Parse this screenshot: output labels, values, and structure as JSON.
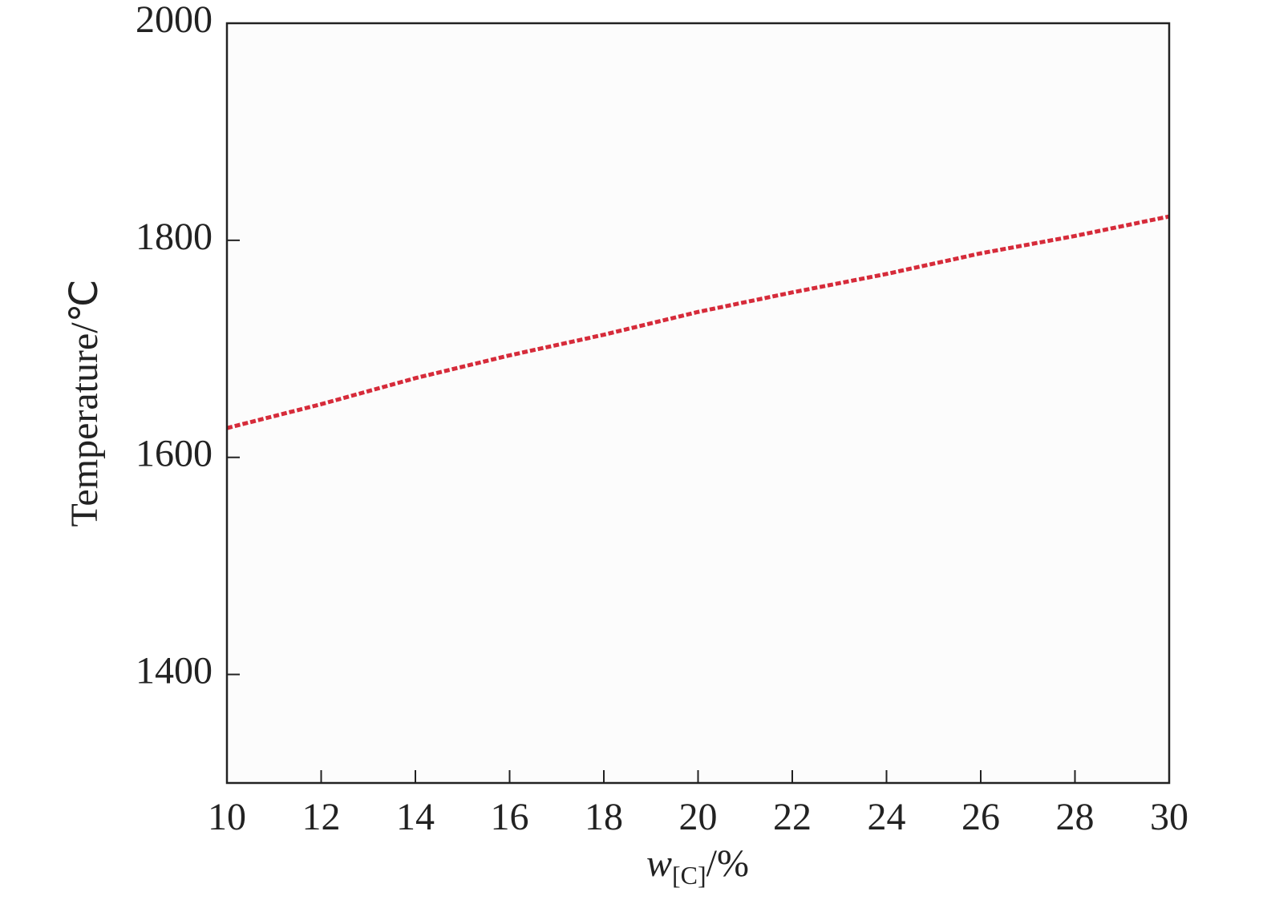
{
  "chart_data": {
    "type": "line",
    "x_label": {
      "symbol": "w",
      "subscript": "[C]",
      "unit": "/%"
    },
    "y_label": "Temperature/℃",
    "x": [
      10,
      12,
      14,
      16,
      18,
      20,
      22,
      24,
      26,
      28,
      30
    ],
    "series": [
      {
        "color": "#d62b3a",
        "values": [
          1627,
          1649,
          1673,
          1694,
          1713,
          1734,
          1752,
          1769,
          1788,
          1804,
          1822
        ]
      }
    ],
    "xlim": [
      10,
      30
    ],
    "xticks": [
      10,
      12,
      14,
      16,
      18,
      20,
      22,
      24,
      26,
      28,
      30
    ],
    "ylim": [
      1300,
      2000
    ],
    "yticks": [
      1400,
      1600,
      1800,
      2000
    ],
    "dashed": true
  }
}
